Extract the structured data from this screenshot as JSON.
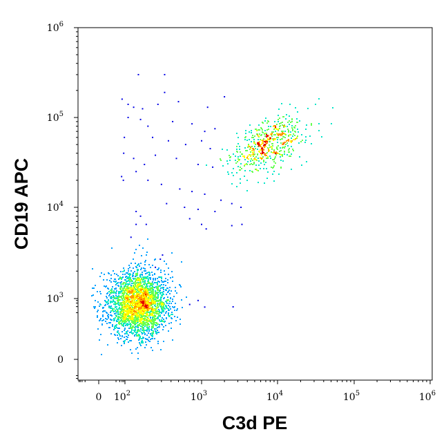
{
  "chart_data": {
    "type": "scatter",
    "style": "density-dot-plot",
    "xlabel": "C3d PE",
    "ylabel": "CD19 APC",
    "x_scale": "biexponential",
    "y_scale": "biexponential",
    "xlim": [
      -100,
      1000000
    ],
    "ylim": [
      -150,
      1000000
    ],
    "x_ticks": [
      {
        "value": 0,
        "base": "0",
        "exp": ""
      },
      {
        "value": 100,
        "base": "10",
        "exp": "2"
      },
      {
        "value": 1000,
        "base": "10",
        "exp": "3"
      },
      {
        "value": 10000,
        "base": "10",
        "exp": "4"
      },
      {
        "value": 100000,
        "base": "10",
        "exp": "5"
      },
      {
        "value": 1000000,
        "base": "10",
        "exp": "6"
      }
    ],
    "y_ticks": [
      {
        "value": 0,
        "base": "0",
        "exp": ""
      },
      {
        "value": 1000,
        "base": "10",
        "exp": "3"
      },
      {
        "value": 10000,
        "base": "10",
        "exp": "4"
      },
      {
        "value": 100000,
        "base": "10",
        "exp": "5"
      },
      {
        "value": 1000000,
        "base": "10",
        "exp": "6"
      }
    ],
    "grid": false,
    "legend": "none",
    "color_scale": [
      "#0000e6",
      "#00a0ff",
      "#00e6c8",
      "#64ff50",
      "#ffff00",
      "#ff9600",
      "#e60000"
    ],
    "populations": [
      {
        "name": "",
        "center_x": 150,
        "center_y": 520,
        "points": 2600
      },
      {
        "name": "",
        "center_x": 7500,
        "center_y": 50000,
        "points": 550
      }
    ],
    "scattered_points": [
      [
        150,
        300000
      ],
      [
        330,
        300000
      ],
      [
        330,
        190000
      ],
      [
        60,
        160000
      ],
      [
        2000,
        170000
      ],
      [
        110,
        140000
      ],
      [
        130,
        130000
      ],
      [
        170,
        125000
      ],
      [
        270,
        140000
      ],
      [
        500,
        150000
      ],
      [
        1200,
        130000
      ],
      [
        110,
        100000
      ],
      [
        160,
        95000
      ],
      [
        200,
        80000
      ],
      [
        420,
        90000
      ],
      [
        750,
        85000
      ],
      [
        1500,
        75000
      ],
      [
        1100,
        70000
      ],
      [
        90,
        60000
      ],
      [
        230,
        60000
      ],
      [
        370,
        55000
      ],
      [
        620,
        50000
      ],
      [
        1000,
        55000
      ],
      [
        1300,
        45000
      ],
      [
        80,
        40000
      ],
      [
        130,
        35000
      ],
      [
        180,
        30000
      ],
      [
        250,
        38000
      ],
      [
        470,
        35000
      ],
      [
        900,
        30000
      ],
      [
        1400,
        28000
      ],
      [
        55,
        22000
      ],
      [
        75,
        20000
      ],
      [
        140,
        25000
      ],
      [
        200,
        20000
      ],
      [
        300,
        18000
      ],
      [
        520,
        16000
      ],
      [
        750,
        15000
      ],
      [
        1100,
        14000
      ],
      [
        1800,
        12000
      ],
      [
        2500,
        11000
      ],
      [
        3300,
        10000
      ],
      [
        1500,
        9000
      ],
      [
        900,
        9500
      ],
      [
        600,
        10000
      ],
      [
        350,
        11000
      ],
      [
        140,
        9000
      ],
      [
        160,
        8000
      ],
      [
        190,
        6500
      ],
      [
        140,
        6500
      ],
      [
        700,
        7500
      ],
      [
        1000,
        6500
      ],
      [
        1150,
        5800
      ],
      [
        2500,
        6300
      ],
      [
        3400,
        6500
      ],
      [
        120,
        4700
      ],
      [
        310,
        3000
      ],
      [
        290,
        2700
      ],
      [
        250,
        2200
      ],
      [
        900,
        800
      ],
      [
        1100,
        380
      ],
      [
        2600,
        390
      ],
      [
        700,
        510
      ]
    ]
  }
}
